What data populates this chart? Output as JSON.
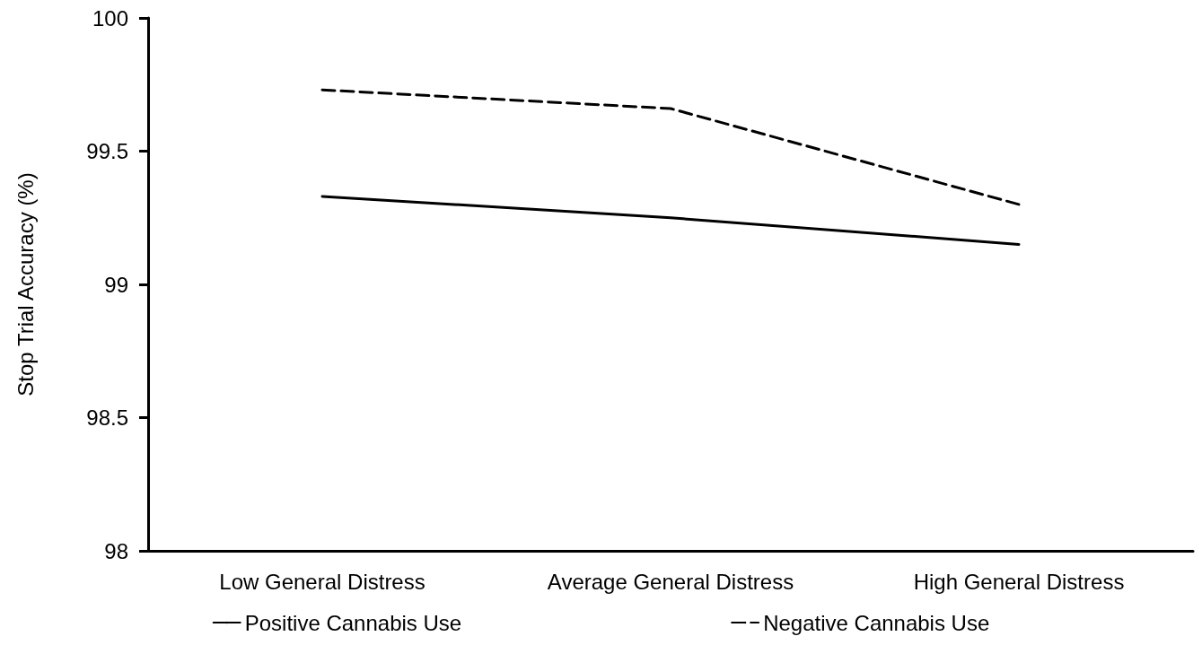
{
  "chart_data": {
    "type": "line",
    "ylabel": "Stop Trial Accuracy (%)",
    "categories": [
      "Low General Distress",
      "Average General Distress",
      "High General Distress"
    ],
    "series": [
      {
        "name": "Positive Cannabis Use",
        "color": "#000000",
        "line_style": "solid",
        "values": [
          99.33,
          99.25,
          99.15
        ]
      },
      {
        "name": "Negative Cannabis Use",
        "color": "#000000",
        "line_style": "dashed",
        "values": [
          99.73,
          99.66,
          99.3
        ]
      }
    ],
    "ylim": [
      98,
      100
    ],
    "yticks": [
      98,
      98.5,
      99,
      99.5,
      100
    ],
    "grid": false,
    "legend": "bottom",
    "marker": "none"
  }
}
